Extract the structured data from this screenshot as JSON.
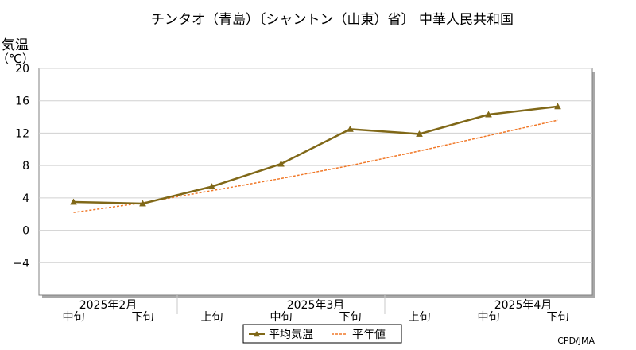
{
  "chart_data": {
    "type": "line",
    "title": "チンタオ（青島）〔シャントン（山東）省〕 中華人民共和国",
    "ylabel_line1": "気温",
    "ylabel_line2": "（℃）",
    "ylim": [
      -8,
      20
    ],
    "yticks": [
      20,
      16,
      12,
      8,
      4,
      0,
      -4
    ],
    "ytick_labels": [
      "20",
      "16",
      "12",
      "8",
      "4",
      "0",
      "−4"
    ],
    "grid": true,
    "x_periods": [
      "中旬",
      "下旬",
      "上旬",
      "中旬",
      "下旬",
      "上旬",
      "中旬",
      "下旬"
    ],
    "month_labels": [
      "2025年2月",
      "2025年3月",
      "2025年4月"
    ],
    "series": [
      {
        "name": "平均気温",
        "color": "#806818",
        "marker": "triangle",
        "values": [
          3.5,
          3.3,
          5.4,
          8.2,
          12.5,
          11.9,
          14.3,
          15.3
        ]
      },
      {
        "name": "平年値",
        "color": "#f07828",
        "style": "dashed",
        "values": [
          2.2,
          3.4,
          4.9,
          6.4,
          8.0,
          9.8,
          11.7,
          13.6
        ]
      }
    ],
    "legend_position": "bottom-center",
    "credit": "CPD/JMA"
  }
}
